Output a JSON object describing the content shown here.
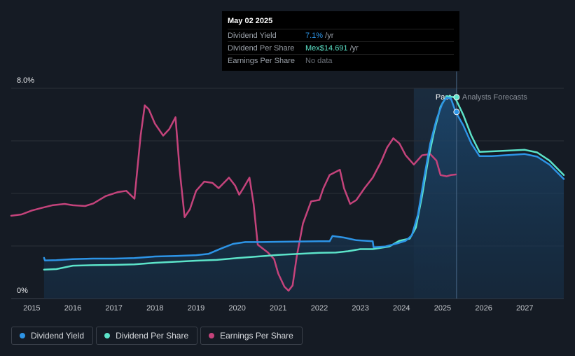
{
  "chart_data": {
    "type": "line",
    "y_axis": {
      "labels": [
        {
          "text": "8.0%",
          "value": 8
        },
        {
          "text": "0%",
          "value": 0
        }
      ],
      "ylim": [
        0,
        8
      ]
    },
    "x_axis": {
      "ticks": [
        "2015",
        "2016",
        "2017",
        "2018",
        "2019",
        "2020",
        "2021",
        "2022",
        "2023",
        "2024",
        "2025",
        "2026",
        "2027"
      ],
      "xlim": [
        2014.5,
        2027.95
      ]
    },
    "past_label": "Past",
    "forecast_label": "Analysts Forecasts",
    "past_end": 2025.34,
    "forecast_band_start": 2024.3,
    "series": [
      {
        "name": "Dividend Yield",
        "color": "#2d94e6",
        "filled": true,
        "points": [
          [
            2015.3,
            1.55
          ],
          [
            2015.32,
            1.45
          ],
          [
            2015.6,
            1.46
          ],
          [
            2016.0,
            1.5
          ],
          [
            2016.5,
            1.52
          ],
          [
            2017.0,
            1.52
          ],
          [
            2017.5,
            1.54
          ],
          [
            2018.0,
            1.6
          ],
          [
            2018.5,
            1.62
          ],
          [
            2019.0,
            1.65
          ],
          [
            2019.3,
            1.7
          ],
          [
            2019.6,
            1.9
          ],
          [
            2019.9,
            2.08
          ],
          [
            2020.2,
            2.15
          ],
          [
            2020.6,
            2.15
          ],
          [
            2021.0,
            2.16
          ],
          [
            2021.5,
            2.17
          ],
          [
            2022.0,
            2.18
          ],
          [
            2022.25,
            2.18
          ],
          [
            2022.32,
            2.38
          ],
          [
            2022.6,
            2.32
          ],
          [
            2022.9,
            2.22
          ],
          [
            2023.3,
            2.18
          ],
          [
            2023.32,
            1.95
          ],
          [
            2023.6,
            1.98
          ],
          [
            2023.9,
            2.1
          ],
          [
            2024.1,
            2.2
          ],
          [
            2024.25,
            2.4
          ],
          [
            2024.4,
            3.2
          ],
          [
            2024.55,
            4.6
          ],
          [
            2024.7,
            5.9
          ],
          [
            2024.85,
            6.8
          ],
          [
            2025.0,
            7.45
          ],
          [
            2025.1,
            7.65
          ],
          [
            2025.2,
            7.62
          ],
          [
            2025.32,
            7.1
          ],
          [
            2025.5,
            6.6
          ],
          [
            2025.7,
            5.9
          ],
          [
            2025.9,
            5.42
          ],
          [
            2026.2,
            5.42
          ],
          [
            2026.6,
            5.46
          ],
          [
            2027.0,
            5.5
          ],
          [
            2027.3,
            5.4
          ],
          [
            2027.6,
            5.1
          ],
          [
            2027.95,
            4.55
          ]
        ]
      },
      {
        "name": "Dividend Per Share",
        "color": "#5ce3c9",
        "filled": false,
        "points": [
          [
            2015.3,
            1.1
          ],
          [
            2015.6,
            1.12
          ],
          [
            2016.0,
            1.25
          ],
          [
            2016.5,
            1.27
          ],
          [
            2017.0,
            1.28
          ],
          [
            2017.5,
            1.3
          ],
          [
            2018.0,
            1.36
          ],
          [
            2018.5,
            1.4
          ],
          [
            2019.0,
            1.44
          ],
          [
            2019.5,
            1.47
          ],
          [
            2020.0,
            1.54
          ],
          [
            2020.5,
            1.6
          ],
          [
            2021.0,
            1.66
          ],
          [
            2021.5,
            1.7
          ],
          [
            2022.0,
            1.74
          ],
          [
            2022.4,
            1.75
          ],
          [
            2022.7,
            1.8
          ],
          [
            2023.0,
            1.88
          ],
          [
            2023.3,
            1.88
          ],
          [
            2023.7,
            1.98
          ],
          [
            2023.95,
            2.2
          ],
          [
            2024.2,
            2.28
          ],
          [
            2024.35,
            2.7
          ],
          [
            2024.5,
            3.9
          ],
          [
            2024.65,
            5.3
          ],
          [
            2024.8,
            6.4
          ],
          [
            2024.95,
            7.3
          ],
          [
            2025.1,
            7.7
          ],
          [
            2025.3,
            7.66
          ],
          [
            2025.5,
            7.0
          ],
          [
            2025.7,
            6.2
          ],
          [
            2025.9,
            5.58
          ],
          [
            2026.2,
            5.6
          ],
          [
            2026.6,
            5.63
          ],
          [
            2027.0,
            5.66
          ],
          [
            2027.3,
            5.56
          ],
          [
            2027.6,
            5.25
          ],
          [
            2027.95,
            4.7
          ]
        ]
      },
      {
        "name": "Earnings Per Share",
        "color": "#c4437b",
        "filled": false,
        "points": [
          [
            2014.5,
            3.15
          ],
          [
            2014.75,
            3.2
          ],
          [
            2015.0,
            3.35
          ],
          [
            2015.25,
            3.45
          ],
          [
            2015.5,
            3.55
          ],
          [
            2015.8,
            3.6
          ],
          [
            2016.0,
            3.55
          ],
          [
            2016.3,
            3.52
          ],
          [
            2016.5,
            3.62
          ],
          [
            2016.8,
            3.9
          ],
          [
            2017.1,
            4.05
          ],
          [
            2017.3,
            4.1
          ],
          [
            2017.5,
            3.8
          ],
          [
            2017.65,
            6.2
          ],
          [
            2017.75,
            7.35
          ],
          [
            2017.85,
            7.2
          ],
          [
            2018.0,
            6.65
          ],
          [
            2018.2,
            6.2
          ],
          [
            2018.35,
            6.45
          ],
          [
            2018.5,
            6.9
          ],
          [
            2018.6,
            4.9
          ],
          [
            2018.72,
            3.1
          ],
          [
            2018.85,
            3.4
          ],
          [
            2019.0,
            4.1
          ],
          [
            2019.2,
            4.45
          ],
          [
            2019.4,
            4.4
          ],
          [
            2019.55,
            4.2
          ],
          [
            2019.8,
            4.6
          ],
          [
            2019.95,
            4.3
          ],
          [
            2020.05,
            3.95
          ],
          [
            2020.15,
            4.2
          ],
          [
            2020.3,
            4.6
          ],
          [
            2020.4,
            3.6
          ],
          [
            2020.5,
            2.05
          ],
          [
            2020.75,
            1.75
          ],
          [
            2020.9,
            1.5
          ],
          [
            2021.0,
            0.95
          ],
          [
            2021.15,
            0.45
          ],
          [
            2021.25,
            0.3
          ],
          [
            2021.35,
            0.5
          ],
          [
            2021.45,
            1.6
          ],
          [
            2021.6,
            2.85
          ],
          [
            2021.8,
            3.7
          ],
          [
            2022.0,
            3.75
          ],
          [
            2022.1,
            4.2
          ],
          [
            2022.25,
            4.7
          ],
          [
            2022.5,
            4.9
          ],
          [
            2022.6,
            4.2
          ],
          [
            2022.75,
            3.6
          ],
          [
            2022.9,
            3.75
          ],
          [
            2023.1,
            4.2
          ],
          [
            2023.3,
            4.6
          ],
          [
            2023.5,
            5.2
          ],
          [
            2023.65,
            5.75
          ],
          [
            2023.8,
            6.1
          ],
          [
            2023.95,
            5.9
          ],
          [
            2024.1,
            5.45
          ],
          [
            2024.3,
            5.1
          ],
          [
            2024.5,
            5.45
          ],
          [
            2024.7,
            5.5
          ],
          [
            2024.85,
            5.25
          ],
          [
            2024.95,
            4.7
          ],
          [
            2025.1,
            4.65
          ],
          [
            2025.2,
            4.7
          ],
          [
            2025.32,
            4.72
          ]
        ]
      }
    ]
  },
  "tooltip": {
    "date": "May 02 2025",
    "rows": [
      {
        "label": "Dividend Yield",
        "value": "7.1%",
        "unit": " /yr",
        "color": "#2d94e6"
      },
      {
        "label": "Dividend Per Share",
        "value": "Mex$14.691",
        "unit": " /yr",
        "color": "#5ce3c9"
      },
      {
        "label": "Earnings Per Share",
        "value": "No data",
        "unit": "",
        "color": "#6b7078"
      }
    ]
  },
  "legend": [
    {
      "label": "Dividend Yield",
      "color": "#2d94e6"
    },
    {
      "label": "Dividend Per Share",
      "color": "#5ce3c9"
    },
    {
      "label": "Earnings Per Share",
      "color": "#c4437b"
    }
  ]
}
